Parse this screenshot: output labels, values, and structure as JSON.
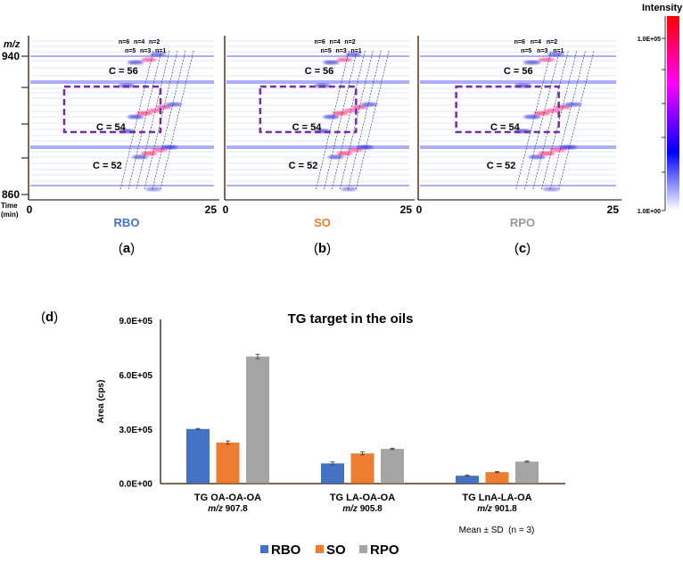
{
  "heatmaps": {
    "y_axis_label": "m/z",
    "x_axis_label_line1": "Time",
    "x_axis_label_line2": "(min)",
    "y_ticks": [
      "940",
      "860"
    ],
    "x_ticks": [
      "0",
      "25"
    ],
    "panels": [
      {
        "name": "RBO",
        "letter": "a",
        "color": "#4472C4"
      },
      {
        "name": "SO",
        "letter": "b",
        "color": "#ED7D31"
      },
      {
        "name": "RPO",
        "letter": "c",
        "color": "#999999"
      }
    ],
    "carbon_labels": [
      "C = 56",
      "C = 54",
      "C = 52"
    ],
    "n_labels_top": [
      "n=6",
      "n=4",
      "n=2"
    ],
    "n_labels_bottom": [
      "n=5",
      "n=3",
      "n=1"
    ],
    "highlight_color": "#7030A0"
  },
  "colorbar": {
    "title": "Intensity",
    "max_label": "1.0E+05",
    "min_label": "1.0E+00",
    "colors": [
      "#ffffff",
      "#0000ff",
      "#ff00ff",
      "#ff0000"
    ]
  },
  "chart_data": {
    "type": "bar",
    "panel_letter": "d",
    "title": "TG target in the oils",
    "xlabel": "",
    "ylabel": "Area (cps)",
    "ylim": [
      0,
      900000
    ],
    "yticks": [
      0,
      300000,
      600000,
      900000
    ],
    "ytick_labels": [
      "0.0E+00",
      "3.0E+05",
      "6.0E+05",
      "9.0E+05"
    ],
    "categories": [
      "TG OA-OA-OA",
      "TG LA-OA-OA",
      "TG LnA-LA-OA"
    ],
    "category_mz": [
      "m/z 907.8",
      "m/z 905.8",
      "m/z 901.8"
    ],
    "series": [
      {
        "name": "RBO",
        "color": "#4472C4",
        "values": [
          300000,
          110000,
          42000
        ],
        "errors": [
          3000,
          8000,
          3000
        ]
      },
      {
        "name": "SO",
        "color": "#ED7D31",
        "values": [
          225000,
          165000,
          62000
        ],
        "errors": [
          9000,
          8000,
          3000
        ]
      },
      {
        "name": "RPO",
        "color": "#A5A5A5",
        "values": [
          700000,
          190000,
          120000
        ],
        "errors": [
          12000,
          3000,
          3000
        ]
      }
    ],
    "annotation": "Mean ± SD  (n = 3)",
    "legend_position": "bottom",
    "grid": false
  }
}
